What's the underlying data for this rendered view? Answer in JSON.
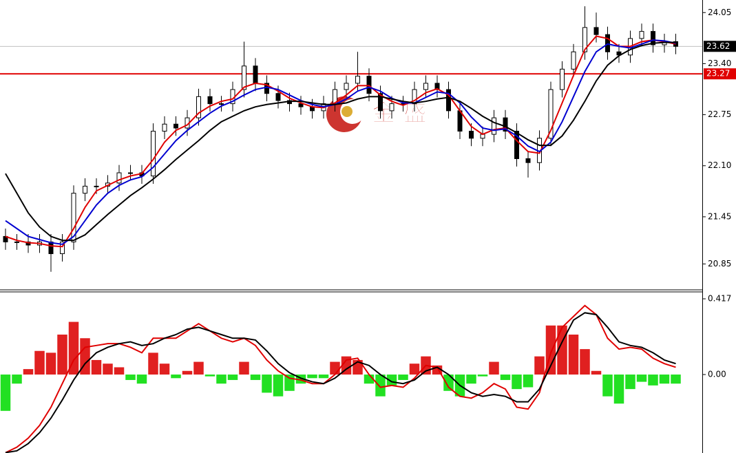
{
  "chart_data": [
    {
      "type": "candlestick",
      "watermark": "金 盛",
      "open": [
        21.2,
        21.13,
        21.13,
        21.09,
        21.13,
        20.98,
        21.13,
        21.75,
        21.84,
        21.84,
        21.88,
        22.01,
        22.01,
        21.97,
        22.54,
        22.63,
        22.58,
        22.71,
        22.98,
        22.89,
        22.89,
        23.07,
        23.37,
        23.15,
        23.02,
        22.93,
        22.89,
        22.85,
        22.8,
        22.89,
        23.07,
        23.15,
        23.24,
        23.02,
        22.8,
        22.89,
        22.89,
        23.07,
        23.15,
        23.07,
        22.8,
        22.54,
        22.45,
        22.5,
        22.71,
        22.54,
        22.19,
        22.14,
        22.45,
        23.07,
        23.33,
        23.55,
        23.86,
        23.77,
        23.55,
        23.51,
        23.72,
        23.81,
        23.64,
        23.68
      ],
      "high": [
        21.3,
        21.23,
        21.23,
        21.23,
        21.23,
        21.23,
        21.85,
        21.94,
        21.94,
        21.98,
        22.11,
        22.11,
        22.11,
        22.64,
        22.73,
        22.73,
        22.81,
        23.08,
        23.08,
        22.99,
        23.17,
        23.68,
        23.47,
        23.25,
        23.12,
        23.03,
        22.99,
        22.95,
        22.99,
        23.17,
        23.25,
        23.55,
        23.34,
        23.12,
        22.99,
        22.99,
        23.17,
        23.25,
        23.25,
        23.17,
        22.9,
        22.64,
        22.6,
        22.81,
        22.81,
        22.64,
        22.29,
        22.55,
        23.17,
        23.43,
        23.65,
        24.13,
        24.05,
        23.87,
        23.65,
        23.82,
        23.91,
        23.91,
        23.78,
        23.78
      ],
      "low": [
        21.03,
        21.03,
        20.99,
        20.99,
        20.75,
        20.88,
        21.03,
        21.65,
        21.74,
        21.74,
        21.78,
        21.91,
        21.87,
        21.87,
        22.44,
        22.48,
        22.48,
        22.61,
        22.79,
        22.79,
        22.79,
        22.97,
        23.05,
        22.92,
        22.83,
        22.79,
        22.75,
        22.7,
        22.7,
        22.79,
        22.97,
        23.05,
        22.92,
        22.7,
        22.7,
        22.79,
        22.79,
        22.97,
        22.97,
        22.7,
        22.44,
        22.35,
        22.35,
        22.4,
        22.44,
        22.09,
        21.95,
        22.04,
        22.35,
        22.97,
        23.23,
        23.45,
        23.67,
        23.45,
        23.41,
        23.41,
        23.62,
        23.54,
        23.54,
        23.52
      ],
      "close": [
        21.13,
        21.13,
        21.09,
        21.13,
        20.98,
        21.13,
        21.75,
        21.84,
        21.84,
        21.88,
        22.01,
        22.01,
        21.97,
        22.54,
        22.63,
        22.58,
        22.71,
        22.98,
        22.89,
        22.89,
        23.07,
        23.37,
        23.15,
        23.02,
        22.93,
        22.89,
        22.85,
        22.8,
        22.89,
        23.07,
        23.15,
        23.24,
        23.02,
        22.8,
        22.89,
        22.89,
        23.07,
        23.15,
        23.07,
        22.8,
        22.54,
        22.45,
        22.5,
        22.71,
        22.54,
        22.19,
        22.14,
        22.45,
        23.07,
        23.33,
        23.55,
        23.86,
        23.77,
        23.55,
        23.51,
        23.72,
        23.81,
        23.64,
        23.68,
        23.62
      ],
      "series": [
        {
          "color": "#e00000",
          "values": [
            21.2,
            21.15,
            21.12,
            21.11,
            21.08,
            21.07,
            21.3,
            21.57,
            21.78,
            21.85,
            21.92,
            21.97,
            22.0,
            22.18,
            22.4,
            22.55,
            22.62,
            22.77,
            22.86,
            22.92,
            22.95,
            23.1,
            23.15,
            23.13,
            23.05,
            22.96,
            22.9,
            22.85,
            22.84,
            22.9,
            23.0,
            23.12,
            23.12,
            23.0,
            22.92,
            22.87,
            22.93,
            23.03,
            23.08,
            23.0,
            22.8,
            22.6,
            22.5,
            22.56,
            22.58,
            22.42,
            22.28,
            22.26,
            22.55,
            22.9,
            23.25,
            23.58,
            23.75,
            23.72,
            23.62,
            23.62,
            23.68,
            23.7,
            23.68,
            23.65
          ]
        },
        {
          "color": "#0000d0",
          "values": [
            21.4,
            21.3,
            21.2,
            21.16,
            21.12,
            21.1,
            21.2,
            21.4,
            21.6,
            21.75,
            21.85,
            21.92,
            21.96,
            22.08,
            22.25,
            22.42,
            22.55,
            22.66,
            22.77,
            22.86,
            22.92,
            23.0,
            23.07,
            23.1,
            23.07,
            23.0,
            22.93,
            22.88,
            22.85,
            22.88,
            22.95,
            23.05,
            23.1,
            23.05,
            22.96,
            22.9,
            22.9,
            22.97,
            23.04,
            23.02,
            22.9,
            22.72,
            22.58,
            22.55,
            22.57,
            22.48,
            22.35,
            22.28,
            22.4,
            22.66,
            22.98,
            23.3,
            23.55,
            23.65,
            23.62,
            23.6,
            23.65,
            23.7,
            23.69,
            23.66
          ]
        },
        {
          "color": "#000000",
          "values": [
            22.0,
            21.75,
            21.5,
            21.32,
            21.2,
            21.15,
            21.15,
            21.22,
            21.35,
            21.48,
            21.6,
            21.72,
            21.82,
            21.93,
            22.05,
            22.18,
            22.3,
            22.42,
            22.55,
            22.66,
            22.73,
            22.8,
            22.85,
            22.88,
            22.9,
            22.92,
            22.92,
            22.9,
            22.88,
            22.88,
            22.9,
            22.95,
            22.98,
            22.98,
            22.95,
            22.92,
            22.9,
            22.92,
            22.95,
            22.97,
            22.92,
            22.83,
            22.73,
            22.65,
            22.6,
            22.52,
            22.43,
            22.36,
            22.36,
            22.48,
            22.68,
            22.92,
            23.18,
            23.38,
            23.5,
            23.58,
            23.63,
            23.66,
            23.67,
            23.67
          ]
        }
      ],
      "ylim": [
        20.52,
        24.21
      ],
      "yticks": [
        24.05,
        {
          "value": 23.4,
          "label": "23.40"
        },
        22.75,
        {
          "value": 22.1,
          "label": "22.10"
        },
        21.45,
        20.85
      ],
      "current_price": 23.62,
      "level": 23.27
    },
    {
      "type": "macd",
      "histogram": [
        -0.2,
        -0.05,
        0.03,
        0.13,
        0.12,
        0.22,
        0.29,
        0.2,
        0.08,
        0.06,
        0.04,
        -0.03,
        -0.05,
        0.12,
        0.06,
        -0.02,
        0.02,
        0.07,
        -0.01,
        -0.05,
        -0.03,
        0.07,
        -0.03,
        -0.1,
        -0.12,
        -0.09,
        -0.05,
        -0.02,
        -0.02,
        0.07,
        0.1,
        0.08,
        -0.05,
        -0.12,
        -0.06,
        -0.03,
        0.06,
        0.1,
        0.05,
        -0.09,
        -0.12,
        -0.05,
        -0.01,
        0.07,
        -0.03,
        -0.08,
        -0.07,
        0.1,
        0.27,
        0.27,
        0.22,
        0.14,
        0.02,
        -0.12,
        -0.16,
        -0.08,
        -0.04,
        -0.06,
        -0.05,
        -0.05
      ],
      "up_color": "#e02020",
      "down_color": "#22e022",
      "series": [
        {
          "color": "#e00000",
          "values": [
            -0.43,
            -0.4,
            -0.35,
            -0.28,
            -0.18,
            -0.05,
            0.08,
            0.15,
            0.16,
            0.17,
            0.17,
            0.15,
            0.12,
            0.2,
            0.2,
            0.2,
            0.24,
            0.28,
            0.24,
            0.2,
            0.18,
            0.2,
            0.16,
            0.08,
            0.02,
            -0.02,
            -0.03,
            -0.05,
            -0.05,
            0.0,
            0.08,
            0.09,
            0.0,
            -0.07,
            -0.06,
            -0.07,
            -0.02,
            0.05,
            0.04,
            -0.07,
            -0.12,
            -0.13,
            -0.1,
            -0.05,
            -0.08,
            -0.18,
            -0.19,
            -0.1,
            0.12,
            0.26,
            0.32,
            0.38,
            0.33,
            0.2,
            0.14,
            0.15,
            0.14,
            0.09,
            0.06,
            0.04
          ]
        },
        {
          "color": "#000000",
          "values": [
            -0.43,
            -0.42,
            -0.38,
            -0.32,
            -0.24,
            -0.14,
            -0.03,
            0.06,
            0.12,
            0.15,
            0.17,
            0.18,
            0.16,
            0.17,
            0.2,
            0.22,
            0.25,
            0.26,
            0.24,
            0.22,
            0.2,
            0.2,
            0.19,
            0.13,
            0.06,
            0.01,
            -0.02,
            -0.04,
            -0.05,
            -0.02,
            0.03,
            0.07,
            0.05,
            0.0,
            -0.04,
            -0.05,
            -0.03,
            0.02,
            0.04,
            0.0,
            -0.06,
            -0.1,
            -0.12,
            -0.11,
            -0.12,
            -0.15,
            -0.15,
            -0.08,
            0.05,
            0.18,
            0.3,
            0.34,
            0.33,
            0.26,
            0.18,
            0.16,
            0.15,
            0.12,
            0.08,
            0.06
          ]
        }
      ],
      "ylim": [
        -0.432,
        0.455
      ],
      "yticks": [
        0.417,
        {
          "value": 0,
          "label": "0.00"
        }
      ]
    }
  ]
}
